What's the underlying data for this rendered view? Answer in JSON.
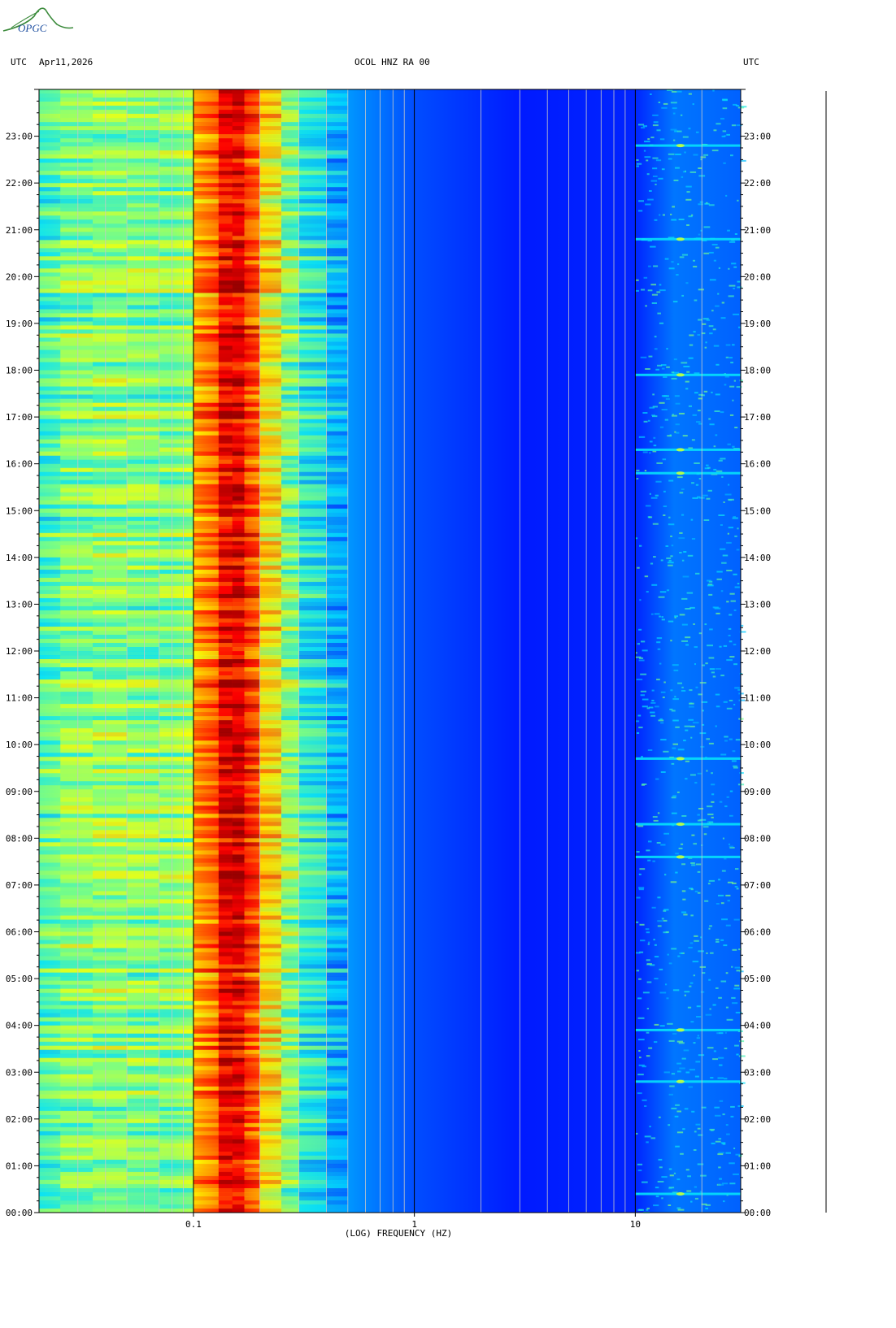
{
  "logo": {
    "text": "OPGC"
  },
  "header": {
    "left_tz": "UTC",
    "date": "Apr11,2026",
    "station": "OCOL HNZ RA 00",
    "right_tz": "UTC"
  },
  "chart_data": {
    "type": "heatmap",
    "title": "OCOL HNZ RA 00",
    "xlabel": "(LOG) FREQUENCY (HZ)",
    "ylabel": "",
    "x_scale": "log",
    "xlim": [
      0.02,
      30
    ],
    "x_tick_values": [
      0.1,
      1,
      10
    ],
    "x_tick_labels": [
      "0.1",
      "1",
      "10"
    ],
    "ylim_hours": [
      0,
      24
    ],
    "y_tick_labels": [
      "00:00",
      "01:00",
      "02:00",
      "03:00",
      "04:00",
      "05:00",
      "06:00",
      "07:00",
      "08:00",
      "09:00",
      "10:00",
      "11:00",
      "12:00",
      "13:00",
      "14:00",
      "15:00",
      "16:00",
      "17:00",
      "18:00",
      "19:00",
      "20:00",
      "21:00",
      "22:00",
      "23:00"
    ],
    "colormap": [
      "#00007f",
      "#0000ff",
      "#0080ff",
      "#00e0ff",
      "#7fff7f",
      "#ffff00",
      "#ff8000",
      "#ff0000",
      "#7f0000"
    ],
    "spectral_profile": [
      {
        "f": 0.02,
        "level": 0.42
      },
      {
        "f": 0.025,
        "level": 0.5
      },
      {
        "f": 0.05,
        "level": 0.52
      },
      {
        "f": 0.08,
        "level": 0.48
      },
      {
        "f": 0.1,
        "level": 0.62
      },
      {
        "f": 0.13,
        "level": 0.88
      },
      {
        "f": 0.17,
        "level": 0.9
      },
      {
        "f": 0.2,
        "level": 0.72
      },
      {
        "f": 0.3,
        "level": 0.45
      },
      {
        "f": 0.5,
        "level": 0.28
      },
      {
        "f": 1.0,
        "level": 0.2
      },
      {
        "f": 3.0,
        "level": 0.15
      },
      {
        "f": 10.0,
        "level": 0.16
      },
      {
        "f": 15.0,
        "level": 0.24
      },
      {
        "f": 30.0,
        "level": 0.22
      }
    ],
    "bright_events_hours": [
      0.4,
      2.8,
      3.9,
      7.6,
      8.3,
      9.7,
      15.8,
      16.3,
      17.9,
      20.8,
      22.8
    ]
  }
}
